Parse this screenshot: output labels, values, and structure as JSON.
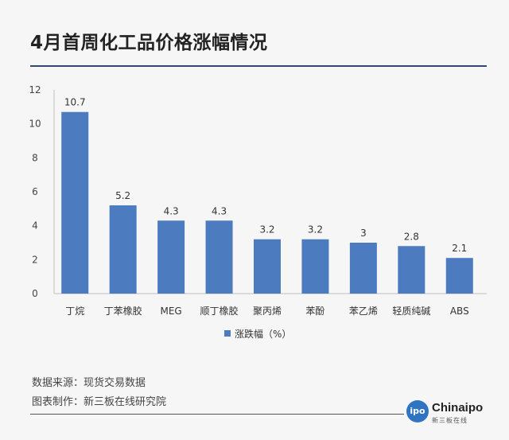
{
  "title": "4月首周化工品价格涨幅情况",
  "source_line": "数据来源：现货交易数据",
  "author_line": "图表制作：新三板在线研究院",
  "logo": {
    "word": "Chinaipo",
    "sub": "新三板在线",
    "badge": "ipo"
  },
  "colors": {
    "bar": "#4c7cbf",
    "title_rule": "#2e4a73"
  },
  "chart_data": {
    "type": "bar",
    "categories": [
      "丁烷",
      "丁苯橡胶",
      "MEG",
      "顺丁橡胶",
      "聚丙烯",
      "苯酚",
      "苯乙烯",
      "轻质纯碱",
      "ABS"
    ],
    "series": [
      {
        "name": "涨跌幅（%）",
        "values": [
          10.7,
          5.2,
          4.3,
          4.3,
          3.2,
          3.2,
          3,
          2.8,
          2.1
        ]
      }
    ],
    "data_labels": [
      "10.7",
      "5.2",
      "4.3",
      "4.3",
      "3.2",
      "3.2",
      "3",
      "2.8",
      "2.1"
    ],
    "y_ticks": [
      0,
      2,
      4,
      6,
      8,
      10,
      12
    ],
    "ylim": [
      0,
      12
    ],
    "grid": false,
    "legend_position": "bottom-center"
  }
}
